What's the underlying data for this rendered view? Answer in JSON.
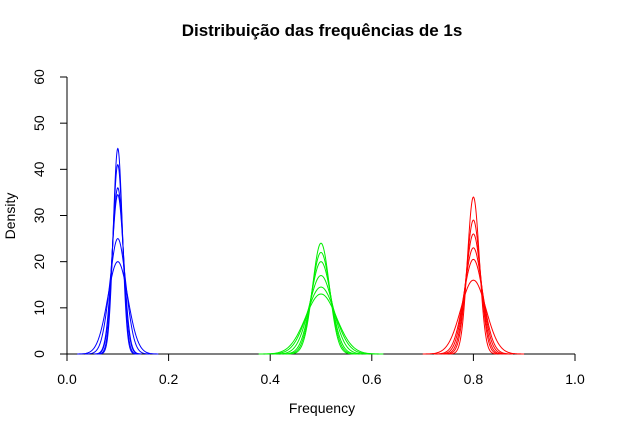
{
  "chart_data": {
    "type": "line",
    "title": "Distribuição das frequências de 1s",
    "xlabel": "Frequency",
    "ylabel": "Density",
    "xlim": [
      0.0,
      1.0
    ],
    "ylim": [
      0,
      60
    ],
    "xticks": [
      "0.0",
      "0.2",
      "0.4",
      "0.6",
      "0.8",
      "1.0"
    ],
    "yticks": [
      "0",
      "10",
      "20",
      "30",
      "40",
      "50",
      "60"
    ],
    "grid": false,
    "legend": "none",
    "groups": [
      {
        "color": "#0000ff",
        "mean": 0.1,
        "peaks": [
          44.5,
          41,
          36,
          34.5,
          25,
          20
        ]
      },
      {
        "color": "#00ee00",
        "mean": 0.5,
        "peaks": [
          24,
          22,
          20,
          17,
          14.5,
          13
        ]
      },
      {
        "color": "#ff0000",
        "mean": 0.8,
        "peaks": [
          34,
          29,
          26,
          23,
          20.5,
          16
        ]
      }
    ]
  }
}
